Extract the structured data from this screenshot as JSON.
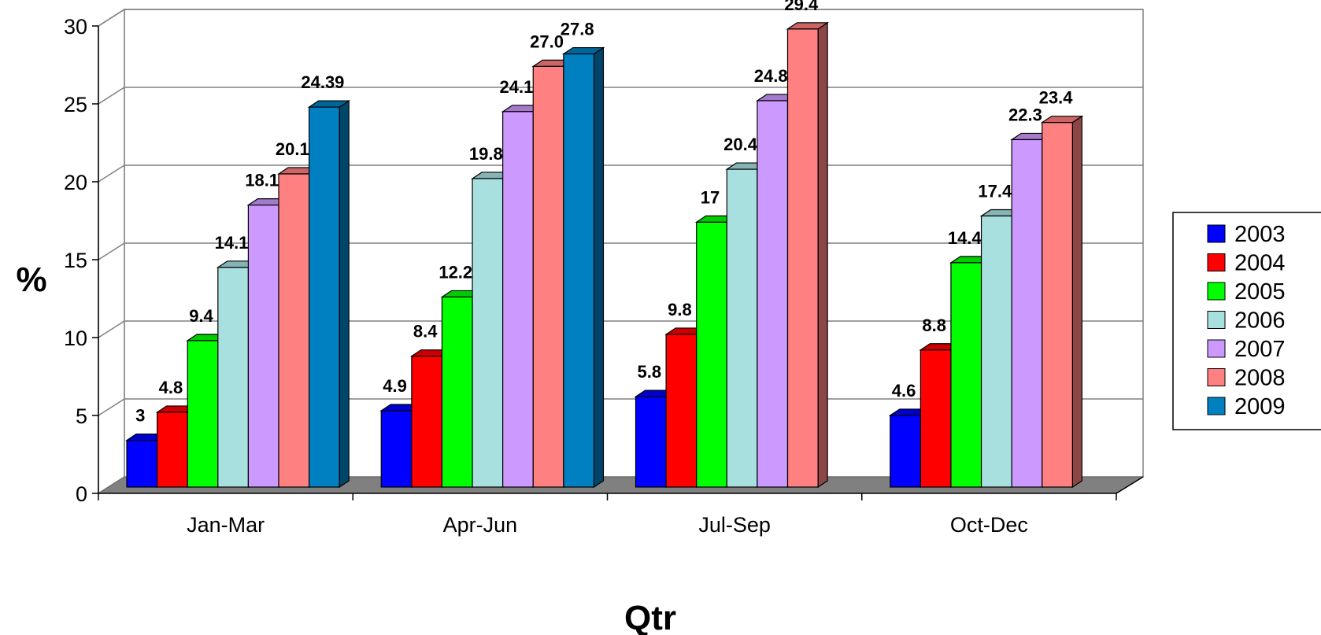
{
  "chart_data": {
    "type": "bar",
    "style": "3d-clustered",
    "xlabel": "Qtr",
    "ylabel": "%",
    "ylim": [
      0,
      30
    ],
    "yticks": [
      0,
      5,
      10,
      15,
      20,
      25,
      30
    ],
    "grid": true,
    "legend_position": "right",
    "categories": [
      "Jan-Mar",
      "Apr-Jun",
      "Jul-Sep",
      "Oct-Dec"
    ],
    "series": [
      {
        "name": "2003",
        "color": "#0000FF",
        "values": [
          3,
          4.9,
          5.8,
          4.6
        ],
        "labels": [
          "3",
          "4.9",
          "5.8",
          "4.6"
        ]
      },
      {
        "name": "2004",
        "color": "#FF0000",
        "values": [
          4.8,
          8.4,
          9.8,
          8.8
        ],
        "labels": [
          "4.8",
          "8.4",
          "9.8",
          "8.8"
        ]
      },
      {
        "name": "2005",
        "color": "#00FF00",
        "values": [
          9.4,
          12.2,
          17,
          14.4
        ],
        "labels": [
          "9.4",
          "12.2",
          "17",
          "14.4"
        ]
      },
      {
        "name": "2006",
        "color": "#A8E0E0",
        "values": [
          14.1,
          19.8,
          20.4,
          17.4
        ],
        "labels": [
          "14.1",
          "19.8",
          "20.4",
          "17.4"
        ]
      },
      {
        "name": "2007",
        "color": "#CC99FF",
        "values": [
          18.1,
          24.1,
          24.8,
          22.3
        ],
        "labels": [
          "18.1",
          "24.1",
          "24.8",
          "22.3"
        ]
      },
      {
        "name": "2008",
        "color": "#FF8080",
        "values": [
          20.1,
          27.0,
          29.4,
          23.4
        ],
        "labels": [
          "20.1",
          "27.0",
          "29.4",
          "23.4"
        ]
      },
      {
        "name": "2009",
        "color": "#0080C0",
        "values": [
          24.39,
          27.8,
          null,
          null
        ],
        "labels": [
          "24.39",
          "27.8",
          "",
          ""
        ]
      }
    ]
  }
}
